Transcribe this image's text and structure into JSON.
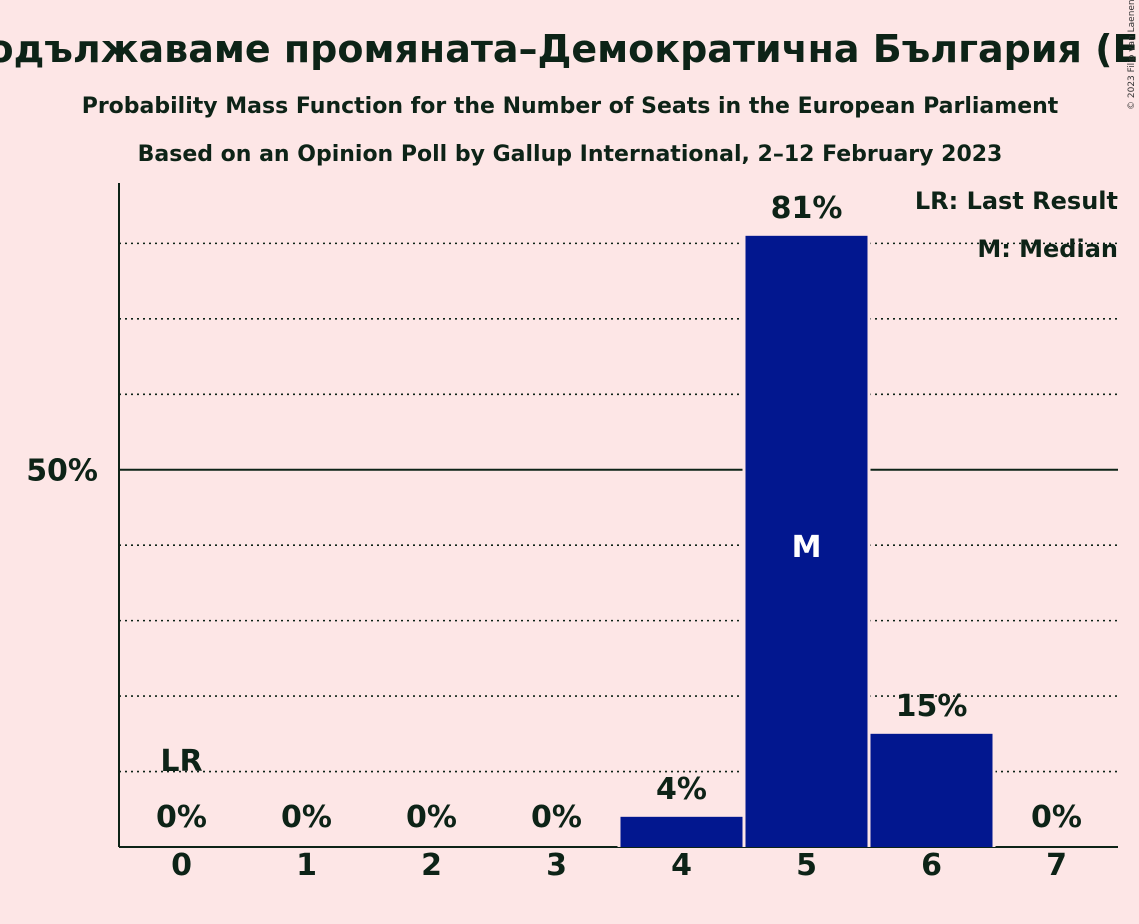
{
  "title": "Продължаваме промяната–Демократична България (EPP)",
  "subtitle": "Probability Mass Function for the Number of Seats in the European Parliament",
  "poll_note": "Based on an Opinion Poll by Gallup International, 2–12 February 2023",
  "copyright": "© 2023 Filip van Laenen",
  "legend": {
    "last_result": "LR: Last Result",
    "median": "M: Median"
  },
  "markers": {
    "last_result_label": "LR",
    "median_label": "M"
  },
  "colors": {
    "background": "#fde6e6",
    "bar": "#02178f",
    "text": "#0d2317"
  },
  "chart_data": {
    "type": "bar",
    "categories": [
      "0",
      "1",
      "2",
      "3",
      "4",
      "5",
      "6",
      "7"
    ],
    "values": [
      0,
      0,
      0,
      0,
      4,
      81,
      15,
      0
    ],
    "value_labels": [
      "0%",
      "0%",
      "0%",
      "0%",
      "4%",
      "81%",
      "15%",
      "0%"
    ],
    "ylim": [
      0,
      88
    ],
    "y_tick_labels": [
      {
        "value": 50,
        "label": "50%"
      }
    ],
    "gridlines": [
      10,
      20,
      30,
      40,
      60,
      70,
      80
    ],
    "last_result_category": "0",
    "median_category": "5",
    "legend_position": "top-right"
  }
}
